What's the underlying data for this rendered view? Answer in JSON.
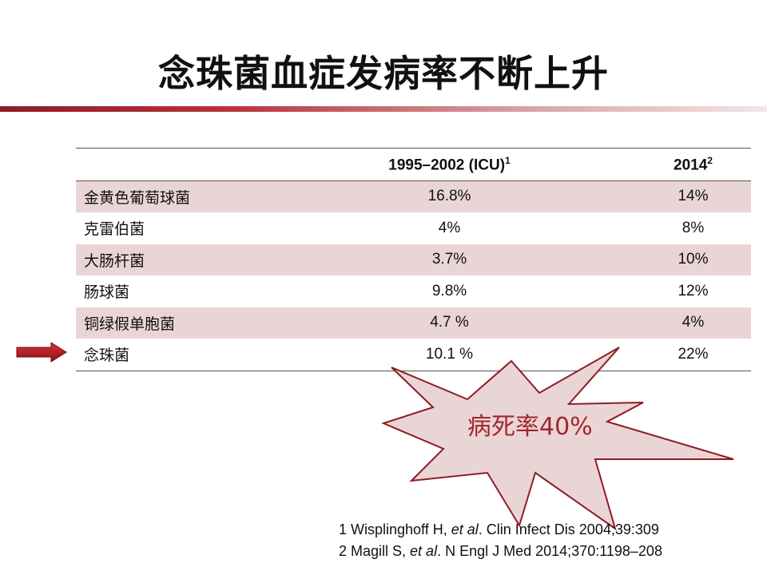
{
  "title": "念珠菌血症发病率不断上升",
  "table": {
    "headers": [
      {
        "label": "",
        "sup": ""
      },
      {
        "label": "1995–2002 (ICU)",
        "sup": "1"
      },
      {
        "label": "2014",
        "sup": "2"
      }
    ],
    "rows": [
      {
        "name": "金黄色葡萄球菌",
        "v1": "16.8%",
        "v2": "14%"
      },
      {
        "name": "克雷伯菌",
        "v1": "4%",
        "v2": "8%"
      },
      {
        "name": "大肠杆菌",
        "v1": "3.7%",
        "v2": "10%"
      },
      {
        "name": "肠球菌",
        "v1": "9.8%",
        "v2": "12%"
      },
      {
        "name": "铜绿假单胞菌",
        "v1": "4.7 %",
        "v2": "4%"
      },
      {
        "name": "念珠菌",
        "v1": "10.1 %",
        "v2": "22%"
      }
    ]
  },
  "callout": "病死率40%",
  "references": {
    "r1": {
      "pre": "1 Wisplinghoff H, ",
      "etal": "et al",
      "post": ". Clin Infect Dis  2004;39:309"
    },
    "r2": {
      "pre": "2 Magill S, ",
      "etal": "et al",
      "post": ". N Engl J Med 2014;370:1198–208"
    }
  },
  "colors": {
    "accent": "#a1262c",
    "row_shade": "#ead5d6",
    "star_fill": "#ead5d6"
  }
}
